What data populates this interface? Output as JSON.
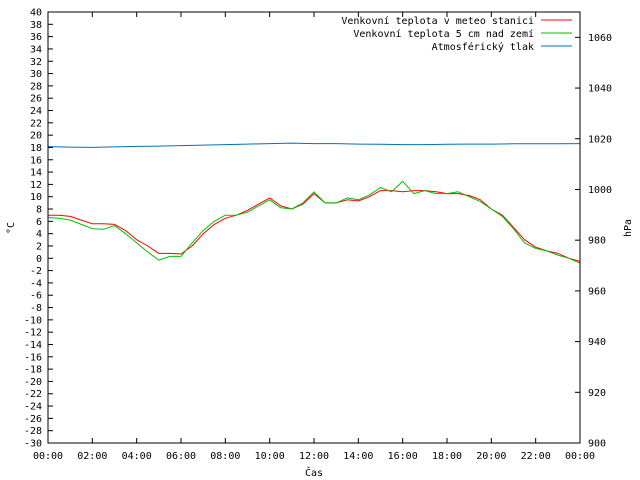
{
  "chart_data": {
    "type": "line",
    "xlabel": "Čas",
    "ylabel_left": "°C",
    "ylabel_right": "hPa",
    "ylim_left": [
      -30,
      40
    ],
    "ylim_right": [
      900,
      1070
    ],
    "xlim_hours": [
      0,
      24
    ],
    "grid": false,
    "legend_position": "top-right",
    "x_tick_labels": [
      "00:00",
      "02:00",
      "04:00",
      "06:00",
      "08:00",
      "10:00",
      "12:00",
      "14:00",
      "16:00",
      "18:00",
      "20:00",
      "22:00",
      "00:00"
    ],
    "y_left_tick_labels": [
      "40",
      "38",
      "36",
      "34",
      "32",
      "30",
      "28",
      "26",
      "24",
      "22",
      "20",
      "18",
      "16",
      "14",
      "12",
      "10",
      "8",
      "6",
      "4",
      "2",
      "0",
      "-2",
      "-4",
      "-6",
      "-8",
      "-10",
      "-12",
      "-14",
      "-16",
      "-18",
      "-20",
      "-22",
      "-24",
      "-26",
      "-28",
      "-30"
    ],
    "y_right_tick_labels": [
      "1060",
      "1040",
      "1020",
      "1000",
      "980",
      "960",
      "940",
      "920",
      "900"
    ],
    "series": [
      {
        "name": "Venkovní teplota v meteo stanici",
        "color": "#ff0000",
        "axis": "left",
        "x": [
          0,
          0.5,
          1,
          1.5,
          2,
          2.5,
          3,
          3.5,
          4,
          4.5,
          5,
          5.5,
          6,
          6.5,
          7,
          7.5,
          8,
          8.5,
          9,
          9.5,
          10,
          10.5,
          11,
          11.5,
          12,
          12.5,
          13,
          13.5,
          14,
          14.5,
          15,
          15.5,
          16,
          16.5,
          17,
          17.5,
          18,
          18.5,
          19,
          19.5,
          20,
          20.5,
          21,
          21.5,
          22,
          22.5,
          23,
          23.5,
          24
        ],
        "values": [
          7,
          7,
          6.8,
          6.2,
          5.6,
          5.6,
          5.5,
          4.5,
          3,
          2,
          0.8,
          0.8,
          0.7,
          2,
          4,
          5.5,
          6.5,
          7,
          7.8,
          8.8,
          9.8,
          8.5,
          8,
          8.8,
          10.5,
          9,
          9,
          9.5,
          9.3,
          10,
          11,
          11,
          10.8,
          11,
          11,
          10.8,
          10.5,
          10.5,
          10.2,
          9.5,
          8,
          7,
          5,
          3,
          1.8,
          1.2,
          0.8,
          0,
          -0.5
        ]
      },
      {
        "name": "Venkovní teplota 5 cm nad zemí",
        "color": "#00c000",
        "axis": "left",
        "x": [
          0,
          0.5,
          1,
          1.5,
          2,
          2.5,
          3,
          3.5,
          4,
          4.5,
          5,
          5.5,
          6,
          6.5,
          7,
          7.5,
          8,
          8.5,
          9,
          9.5,
          10,
          10.5,
          11,
          11.5,
          12,
          12.5,
          13,
          13.5,
          14,
          14.5,
          15,
          15.5,
          16,
          16.5,
          17,
          17.5,
          18,
          18.5,
          19,
          19.5,
          20,
          20.5,
          21,
          21.5,
          22,
          22.5,
          23,
          23.5,
          24
        ],
        "values": [
          6.6,
          6.5,
          6.2,
          5.5,
          4.8,
          4.7,
          5.3,
          4,
          2.5,
          1,
          -0.3,
          0.3,
          0.3,
          2.5,
          4.5,
          6,
          7,
          7,
          7.5,
          8.5,
          9.5,
          8.2,
          8,
          9,
          10.8,
          9,
          9,
          9.8,
          9.5,
          10.3,
          11.5,
          10.8,
          12.5,
          10.5,
          11,
          10.5,
          10.5,
          10.8,
          10,
          9.2,
          8,
          6.8,
          4.8,
          2.5,
          1.6,
          1.2,
          0.5,
          0,
          -0.8
        ]
      },
      {
        "name": "Atmosférický tlak",
        "color": "#0070c0",
        "axis": "right",
        "x": [
          0,
          1,
          2,
          3,
          4,
          5,
          6,
          7,
          8,
          9,
          10,
          11,
          12,
          13,
          14,
          15,
          16,
          17,
          18,
          19,
          20,
          21,
          22,
          23,
          24
        ],
        "values": [
          1016.9,
          1016.7,
          1016.6,
          1016.8,
          1017,
          1017.1,
          1017.3,
          1017.5,
          1017.7,
          1017.9,
          1018.1,
          1018.3,
          1018.1,
          1018.1,
          1017.9,
          1017.8,
          1017.7,
          1017.7,
          1017.8,
          1017.9,
          1017.9,
          1018,
          1018,
          1018,
          1018.1
        ]
      }
    ]
  }
}
